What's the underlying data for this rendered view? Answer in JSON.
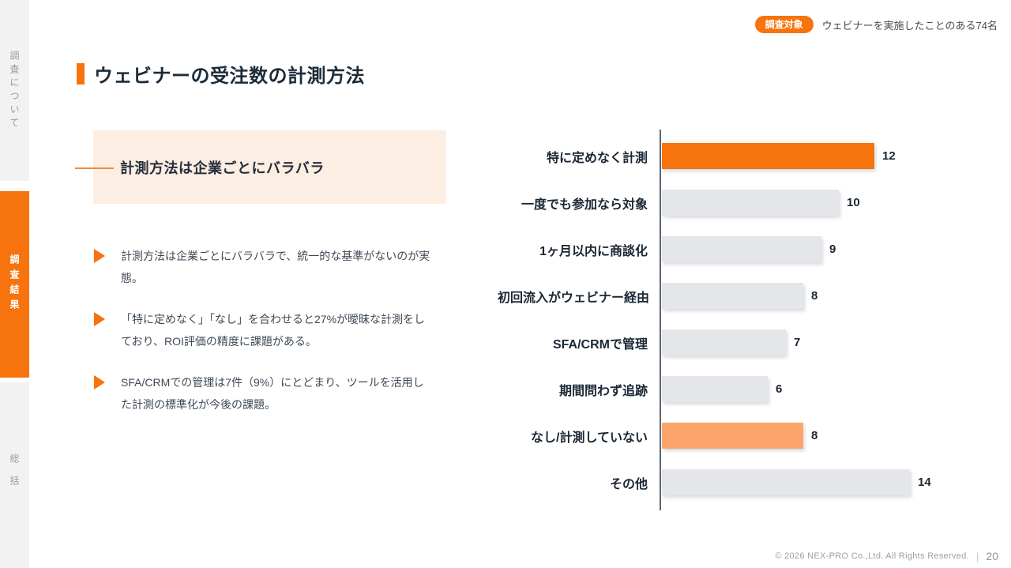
{
  "sidebar": {
    "items": [
      {
        "label": "調査について",
        "active": false
      },
      {
        "label": "調査結果",
        "active": true
      },
      {
        "label": "総括",
        "active": false
      }
    ]
  },
  "header": {
    "badge_label": "調査対象",
    "badge_text": "ウェビナーを実施したことのある74名",
    "title": "ウェビナーの受注数の計測方法"
  },
  "highlight_box": {
    "text": "計測方法は企業ごとにバラバラ"
  },
  "bullets": [
    "計測方法は企業ごとにバラバラで、統一的な基準がないのが実態。",
    "「特に定めなく」「なし」を合わせると27%が曖昧な計測をしており、ROI評価の精度に課題がある。",
    "SFA/CRMでの管理は7件（9%）にとどまり、ツールを活用した計測の標準化が今後の課題。"
  ],
  "chart_data": {
    "type": "bar",
    "orientation": "horizontal",
    "title": "",
    "xlabel": "",
    "ylabel": "",
    "xlim": [
      0,
      14.5
    ],
    "grid": false,
    "legend": "none",
    "categories": [
      "特に定めなく計測",
      "一度でも参加なら対象",
      "1ヶ月以内に商談化",
      "初回流入がウェビナー経由",
      "SFA/CRMで管理",
      "期間問わず追跡",
      "なし/計測していない",
      "その他"
    ],
    "values": [
      12,
      10,
      9,
      8,
      7,
      6,
      8,
      14
    ],
    "bar_colors": [
      "#f7730e",
      "#e4e6ea",
      "#e4e6ea",
      "#e4e6ea",
      "#e4e6ea",
      "#e4e6ea",
      "#fba56b",
      "#e4e6ea"
    ]
  },
  "footer": {
    "copyright": "© 2026 NEX-PRO Co.,Ltd. All Rights Reserved.",
    "separator": "|",
    "page_number": "20"
  },
  "colors": {
    "accent_orange": "#f7730e",
    "accent_light_orange": "#fba56b",
    "bar_gray": "#e4e6ea",
    "highlight_bg": "#fdeee4",
    "rail_gray": "#f2f2f2",
    "text_dark": "#1c2b39"
  }
}
